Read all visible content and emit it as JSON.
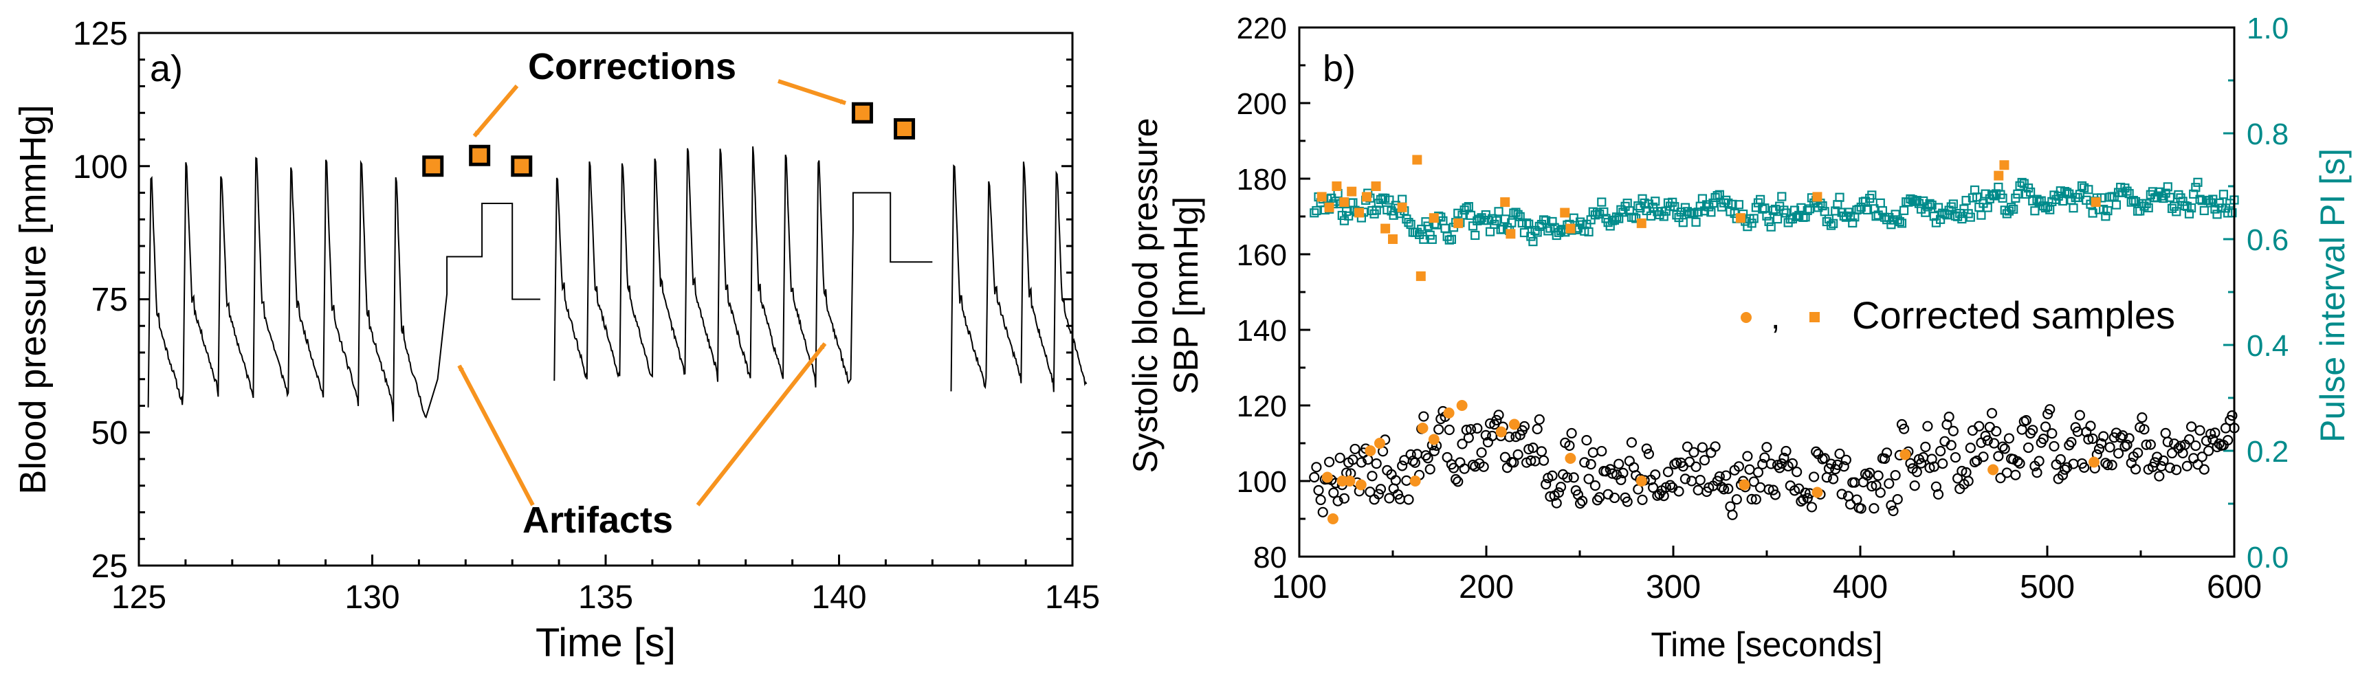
{
  "chart_data": [
    {
      "type": "line",
      "panel_label": "a)",
      "xlabel": "Time [s]",
      "ylabel": "Blood pressure [mmHg]",
      "xlim": [
        125,
        145
      ],
      "ylim": [
        25,
        125
      ],
      "xticks": [
        "125",
        "130",
        "135",
        "140",
        "145"
      ],
      "yticks": [
        "25",
        "50",
        "75",
        "100",
        "125"
      ],
      "beats_group1": [
        {
          "t": 125.2,
          "sys": 101,
          "dia": 55
        },
        {
          "t": 125.95,
          "sys": 103,
          "dia": 58
        },
        {
          "t": 126.7,
          "sys": 101,
          "dia": 57
        },
        {
          "t": 127.45,
          "sys": 105,
          "dia": 57
        },
        {
          "t": 128.2,
          "sys": 102,
          "dia": 57
        },
        {
          "t": 128.95,
          "sys": 104,
          "dia": 56
        },
        {
          "t": 129.7,
          "sys": 104,
          "dia": 55
        },
        {
          "t": 130.45,
          "sys": 101,
          "dia": 52
        }
      ],
      "artifact1": [
        {
          "t": 131.6,
          "v": 76
        },
        {
          "t": 131.6,
          "v": 83
        },
        {
          "t": 132.35,
          "v": 83
        },
        {
          "t": 132.35,
          "v": 93
        },
        {
          "t": 133.0,
          "v": 93
        },
        {
          "t": 133.0,
          "v": 75
        },
        {
          "t": 133.6,
          "v": 75
        }
      ],
      "beats_group2": [
        {
          "t": 133.9,
          "sys": 100,
          "dia": 60
        },
        {
          "t": 134.6,
          "sys": 103,
          "dia": 60
        },
        {
          "t": 135.3,
          "sys": 103,
          "dia": 60
        },
        {
          "t": 136.0,
          "sys": 104,
          "dia": 61
        },
        {
          "t": 136.7,
          "sys": 106,
          "dia": 61
        },
        {
          "t": 137.4,
          "sys": 106,
          "dia": 60
        },
        {
          "t": 138.1,
          "sys": 106,
          "dia": 60
        },
        {
          "t": 138.8,
          "sys": 105,
          "dia": 60
        },
        {
          "t": 139.5,
          "sys": 104,
          "dia": 59
        }
      ],
      "artifact2": [
        {
          "t": 140.3,
          "v": 88
        },
        {
          "t": 140.3,
          "v": 95
        },
        {
          "t": 141.1,
          "v": 95
        },
        {
          "t": 141.1,
          "v": 82
        },
        {
          "t": 142.0,
          "v": 82
        }
      ],
      "beats_group3": [
        {
          "t": 142.4,
          "sys": 103,
          "dia": 58
        },
        {
          "t": 143.15,
          "sys": 99,
          "dia": 60
        },
        {
          "t": 143.9,
          "sys": 103,
          "dia": 59
        },
        {
          "t": 144.6,
          "sys": 102,
          "dia": 58
        }
      ],
      "corrections": [
        {
          "t": 131.3,
          "v": 100
        },
        {
          "t": 132.3,
          "v": 102
        },
        {
          "t": 133.2,
          "v": 100
        },
        {
          "t": 140.5,
          "v": 110
        },
        {
          "t": 141.4,
          "v": 107
        }
      ],
      "annotations": {
        "corrections": "Corrections",
        "artifacts": "Artifacts"
      },
      "colors": {
        "trace": "#000000",
        "correction_fill": "#F7931E",
        "correction_edge": "#000000",
        "arrow": "#F7931E"
      }
    },
    {
      "type": "scatter",
      "panel_label": "b)",
      "xlabel": "Time [seconds]",
      "ylabel_line1": "Systolic blood pressure",
      "ylabel_line2": "SBP [mmHg]",
      "y2label": "Pulse interval PI [s]",
      "xlim": [
        100,
        600
      ],
      "ylim": [
        80,
        220
      ],
      "y2lim": [
        0.0,
        1.0
      ],
      "xticks": [
        "100",
        "200",
        "300",
        "400",
        "500",
        "600"
      ],
      "yticks": [
        "80",
        "100",
        "120",
        "140",
        "160",
        "180",
        "200",
        "220"
      ],
      "y2ticks": [
        "0.0",
        "0.2",
        "0.4",
        "0.6",
        "0.8",
        "1.0"
      ],
      "legend": {
        "separator": ",",
        "label": "Corrected samples",
        "position": "center-right"
      },
      "sbp_series": {
        "name": "SBP",
        "t_start": 108,
        "t_end": 600,
        "n": 430,
        "mean": 105,
        "spread": 6
      },
      "pi_series": {
        "name": "PI",
        "t_start": 108,
        "t_end": 600,
        "n": 430,
        "mean": 0.655,
        "spread": 0.02
      },
      "corrected_sbp": [
        {
          "t": 115,
          "v": 101
        },
        {
          "t": 118,
          "v": 90
        },
        {
          "t": 123,
          "v": 100
        },
        {
          "t": 127,
          "v": 100
        },
        {
          "t": 133,
          "v": 99
        },
        {
          "t": 138,
          "v": 108
        },
        {
          "t": 143,
          "v": 110
        },
        {
          "t": 162,
          "v": 100
        },
        {
          "t": 166,
          "v": 114
        },
        {
          "t": 172,
          "v": 111
        },
        {
          "t": 180,
          "v": 118
        },
        {
          "t": 187,
          "v": 120
        },
        {
          "t": 208,
          "v": 113
        },
        {
          "t": 215,
          "v": 115
        },
        {
          "t": 245,
          "v": 106
        },
        {
          "t": 283,
          "v": 100
        },
        {
          "t": 338,
          "v": 99
        },
        {
          "t": 377,
          "v": 97
        },
        {
          "t": 424,
          "v": 107
        },
        {
          "t": 471,
          "v": 103
        },
        {
          "t": 525,
          "v": 105
        }
      ],
      "corrected_pi": [
        {
          "t": 112,
          "v": 0.68
        },
        {
          "t": 116,
          "v": 0.66
        },
        {
          "t": 120,
          "v": 0.7
        },
        {
          "t": 124,
          "v": 0.67
        },
        {
          "t": 128,
          "v": 0.69
        },
        {
          "t": 132,
          "v": 0.65
        },
        {
          "t": 136,
          "v": 0.68
        },
        {
          "t": 141,
          "v": 0.7
        },
        {
          "t": 146,
          "v": 0.62
        },
        {
          "t": 150,
          "v": 0.6
        },
        {
          "t": 155,
          "v": 0.66
        },
        {
          "t": 163,
          "v": 0.75
        },
        {
          "t": 165,
          "v": 0.53
        },
        {
          "t": 172,
          "v": 0.64
        },
        {
          "t": 185,
          "v": 0.63
        },
        {
          "t": 210,
          "v": 0.67
        },
        {
          "t": 213,
          "v": 0.61
        },
        {
          "t": 242,
          "v": 0.65
        },
        {
          "t": 245,
          "v": 0.62
        },
        {
          "t": 283,
          "v": 0.63
        },
        {
          "t": 336,
          "v": 0.64
        },
        {
          "t": 377,
          "v": 0.68
        },
        {
          "t": 474,
          "v": 0.72
        },
        {
          "t": 477,
          "v": 0.74
        },
        {
          "t": 526,
          "v": 0.67
        }
      ],
      "colors": {
        "sbp": "#000000",
        "pi": "#008B8B",
        "corrected": "#F7931E",
        "y2axis": "#008B8B"
      }
    }
  ]
}
